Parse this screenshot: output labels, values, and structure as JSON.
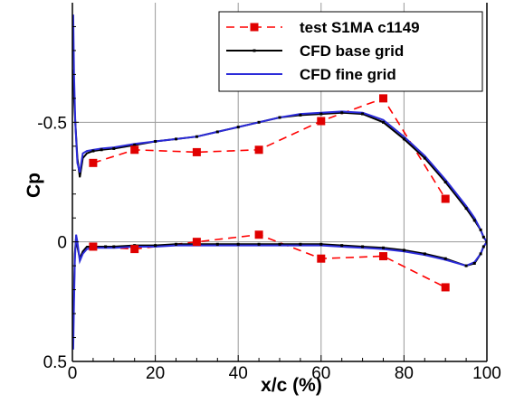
{
  "chart_data": {
    "type": "line",
    "title": "",
    "xlabel": "x/c (%)",
    "ylabel": "Cp",
    "xlim": [
      0,
      100
    ],
    "ylim": [
      0.5,
      -1.0
    ],
    "y_axis_inverted": true,
    "grid": true,
    "legend_position": "top-right",
    "x_ticks": [
      0,
      20,
      40,
      60,
      80,
      100
    ],
    "x_tick_labels": [
      "0",
      "20",
      "40",
      "60",
      "80",
      "100"
    ],
    "y_ticks": [
      0.5,
      0,
      -0.5
    ],
    "y_tick_labels": [
      "0.5",
      "0",
      "-0.5"
    ],
    "series": [
      {
        "name": "test S1MA c1149",
        "color": "#ff0000",
        "marker_color": "#e00000",
        "style": "dashed-square-markers",
        "upper": [
          [
            5,
            -0.33
          ],
          [
            15,
            -0.385
          ],
          [
            30,
            -0.375
          ],
          [
            45,
            -0.385
          ],
          [
            60,
            -0.505
          ],
          [
            75,
            -0.6
          ],
          [
            90,
            -0.18
          ]
        ],
        "lower": [
          [
            5,
            0.02
          ],
          [
            15,
            0.03
          ],
          [
            30,
            0.0
          ],
          [
            45,
            -0.03
          ],
          [
            60,
            0.07
          ],
          [
            75,
            0.06
          ],
          [
            90,
            0.19
          ]
        ]
      },
      {
        "name": "CFD base grid",
        "color": "#000000",
        "style": "solid-small-markers",
        "upper": [
          [
            0.2,
            -0.72
          ],
          [
            0.4,
            -0.6
          ],
          [
            0.7,
            -0.5
          ],
          [
            1.2,
            -0.35
          ],
          [
            1.8,
            -0.27
          ],
          [
            2.5,
            -0.35
          ],
          [
            3.5,
            -0.37
          ],
          [
            5,
            -0.38
          ],
          [
            7,
            -0.385
          ],
          [
            10,
            -0.39
          ],
          [
            15,
            -0.405
          ],
          [
            20,
            -0.42
          ],
          [
            25,
            -0.43
          ],
          [
            30,
            -0.44
          ],
          [
            35,
            -0.46
          ],
          [
            40,
            -0.48
          ],
          [
            45,
            -0.5
          ],
          [
            50,
            -0.52
          ],
          [
            55,
            -0.53
          ],
          [
            60,
            -0.535
          ],
          [
            65,
            -0.54
          ],
          [
            70,
            -0.535
          ],
          [
            75,
            -0.5
          ],
          [
            80,
            -0.43
          ],
          [
            85,
            -0.35
          ],
          [
            90,
            -0.25
          ],
          [
            95,
            -0.14
          ],
          [
            97,
            -0.09
          ],
          [
            98.5,
            -0.05
          ],
          [
            99.2,
            -0.02
          ],
          [
            100,
            0.0
          ]
        ],
        "lower": [
          [
            0.2,
            0.35
          ],
          [
            0.4,
            0.2
          ],
          [
            0.6,
            0.05
          ],
          [
            0.9,
            -0.02
          ],
          [
            1.2,
            0.02
          ],
          [
            1.8,
            0.07
          ],
          [
            2.5,
            0.04
          ],
          [
            3.5,
            0.02
          ],
          [
            5,
            0.02
          ],
          [
            8,
            0.02
          ],
          [
            10,
            0.02
          ],
          [
            15,
            0.015
          ],
          [
            20,
            0.015
          ],
          [
            25,
            0.01
          ],
          [
            30,
            0.01
          ],
          [
            35,
            0.01
          ],
          [
            40,
            0.01
          ],
          [
            45,
            0.01
          ],
          [
            50,
            0.01
          ],
          [
            55,
            0.01
          ],
          [
            60,
            0.01
          ],
          [
            65,
            0.015
          ],
          [
            70,
            0.02
          ],
          [
            75,
            0.025
          ],
          [
            80,
            0.035
          ],
          [
            85,
            0.05
          ],
          [
            90,
            0.07
          ],
          [
            95,
            0.1
          ],
          [
            97,
            0.09
          ],
          [
            98.5,
            0.05
          ],
          [
            99.2,
            0.02
          ],
          [
            100,
            0.0
          ]
        ]
      },
      {
        "name": "CFD fine grid",
        "color": "#2b2bd9",
        "style": "solid",
        "upper": [
          [
            0.2,
            -0.95
          ],
          [
            0.4,
            -0.7
          ],
          [
            0.7,
            -0.5
          ],
          [
            1.2,
            -0.33
          ],
          [
            1.8,
            -0.29
          ],
          [
            2.5,
            -0.37
          ],
          [
            3.5,
            -0.38
          ],
          [
            5,
            -0.385
          ],
          [
            7,
            -0.39
          ],
          [
            10,
            -0.395
          ],
          [
            15,
            -0.41
          ],
          [
            20,
            -0.42
          ],
          [
            25,
            -0.43
          ],
          [
            30,
            -0.44
          ],
          [
            35,
            -0.46
          ],
          [
            40,
            -0.48
          ],
          [
            45,
            -0.5
          ],
          [
            50,
            -0.52
          ],
          [
            55,
            -0.535
          ],
          [
            60,
            -0.54
          ],
          [
            65,
            -0.545
          ],
          [
            70,
            -0.54
          ],
          [
            75,
            -0.51
          ],
          [
            80,
            -0.44
          ],
          [
            85,
            -0.36
          ],
          [
            90,
            -0.26
          ],
          [
            95,
            -0.15
          ],
          [
            97,
            -0.1
          ],
          [
            98.5,
            -0.05
          ],
          [
            99.2,
            -0.02
          ],
          [
            100,
            0.0
          ]
        ],
        "lower": [
          [
            0.2,
            0.45
          ],
          [
            0.4,
            0.25
          ],
          [
            0.6,
            0.08
          ],
          [
            0.9,
            -0.03
          ],
          [
            1.2,
            0.0
          ],
          [
            1.8,
            0.08
          ],
          [
            2.5,
            0.05
          ],
          [
            3.5,
            0.03
          ],
          [
            5,
            0.025
          ],
          [
            8,
            0.025
          ],
          [
            10,
            0.025
          ],
          [
            15,
            0.02
          ],
          [
            20,
            0.02
          ],
          [
            25,
            0.015
          ],
          [
            30,
            0.015
          ],
          [
            35,
            0.015
          ],
          [
            40,
            0.015
          ],
          [
            45,
            0.015
          ],
          [
            50,
            0.015
          ],
          [
            55,
            0.015
          ],
          [
            60,
            0.015
          ],
          [
            65,
            0.02
          ],
          [
            70,
            0.025
          ],
          [
            75,
            0.03
          ],
          [
            80,
            0.04
          ],
          [
            85,
            0.055
          ],
          [
            90,
            0.075
          ],
          [
            95,
            0.1
          ],
          [
            97,
            0.085
          ],
          [
            98.5,
            0.05
          ],
          [
            99.2,
            0.02
          ],
          [
            100,
            0.0
          ]
        ]
      }
    ]
  }
}
